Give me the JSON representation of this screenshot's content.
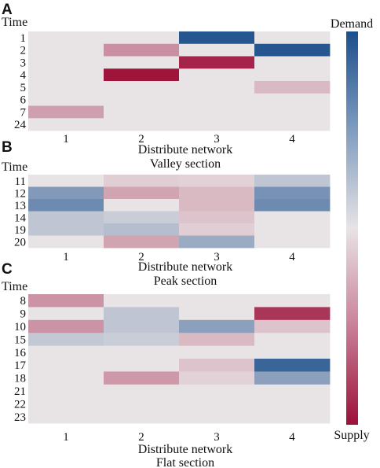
{
  "chart_data": {
    "type": "heatmap",
    "value_range": [
      -1,
      1
    ],
    "colorbar": {
      "top_label": "Demand",
      "bottom_label": "Supply",
      "colors": {
        "demand": "#1b4f8c",
        "neutral": "#e8e3e5",
        "supply": "#9c1038"
      }
    },
    "panels": [
      {
        "letter": "A",
        "ylabel": "Time",
        "xlabel": "Distribute network",
        "subtitle": "Valley section",
        "x_ticks": [
          "1",
          "2",
          "3",
          "4"
        ],
        "y_ticks": [
          "1",
          "2",
          "3",
          "4",
          "5",
          "6",
          "7",
          "24"
        ],
        "values": [
          [
            0,
            0,
            0.95,
            0
          ],
          [
            0,
            -0.4,
            0,
            0.95
          ],
          [
            0,
            0,
            -0.9,
            0
          ],
          [
            0,
            -0.98,
            0,
            0
          ],
          [
            0,
            0,
            0,
            -0.2
          ],
          [
            0,
            0,
            0,
            0
          ],
          [
            -0.32,
            0,
            0,
            0
          ],
          [
            0,
            0,
            0,
            0
          ]
        ]
      },
      {
        "letter": "B",
        "ylabel": "Time",
        "xlabel": "Distribute network",
        "subtitle": "Peak section",
        "x_ticks": [
          "1",
          "2",
          "3",
          "4"
        ],
        "y_ticks": [
          "11",
          "12",
          "13",
          "14",
          "19",
          "20"
        ],
        "values": [
          [
            0,
            -0.1,
            -0.08,
            0.2
          ],
          [
            0.5,
            -0.3,
            -0.2,
            0.55
          ],
          [
            0.6,
            0.0,
            -0.2,
            0.6
          ],
          [
            0.2,
            0.15,
            -0.15,
            0
          ],
          [
            0.2,
            0.25,
            -0.1,
            0
          ],
          [
            0,
            -0.3,
            0.38,
            0
          ]
        ]
      },
      {
        "letter": "C",
        "ylabel": "Time",
        "xlabel": "Distribute network",
        "subtitle": "Flat section",
        "x_ticks": [
          "1",
          "2",
          "3",
          "4"
        ],
        "y_ticks": [
          "8",
          "9",
          "10",
          "15",
          "16",
          "17",
          "18",
          "21",
          "22",
          "23"
        ],
        "values": [
          [
            -0.38,
            0,
            0,
            0
          ],
          [
            0,
            0.2,
            0,
            -0.82
          ],
          [
            -0.38,
            0.2,
            0.45,
            -0.15
          ],
          [
            0.18,
            0.15,
            -0.2,
            0
          ],
          [
            0,
            0,
            0,
            0
          ],
          [
            0,
            0,
            -0.15,
            0.85
          ],
          [
            0,
            -0.35,
            -0.08,
            0.45
          ],
          [
            0,
            0,
            0,
            0
          ],
          [
            0,
            0,
            0,
            0
          ],
          [
            0,
            0,
            0,
            0
          ]
        ]
      }
    ]
  }
}
